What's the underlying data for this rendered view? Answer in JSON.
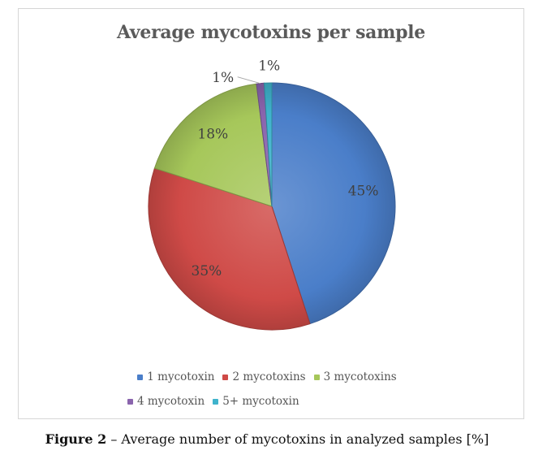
{
  "chart_data": {
    "type": "pie",
    "title": "Average mycotoxins per sample",
    "categories": [
      "1 mycotoxin",
      "2 mycotoxins",
      "3 mycotoxins",
      "4 mycotoxin",
      "5+ mycotoxin"
    ],
    "values": [
      45,
      35,
      18,
      1,
      1
    ],
    "data_labels": [
      "45%",
      "35%",
      "18%",
      "1%",
      "1%"
    ],
    "colors": [
      "#4a7ec9",
      "#cf4a47",
      "#a6c75a",
      "#8a64ad",
      "#3fb3cc"
    ],
    "legend_position": "bottom"
  },
  "caption": {
    "label": "Figure 2",
    "text": " – Average number of mycotoxins in analyzed samples [%]"
  }
}
